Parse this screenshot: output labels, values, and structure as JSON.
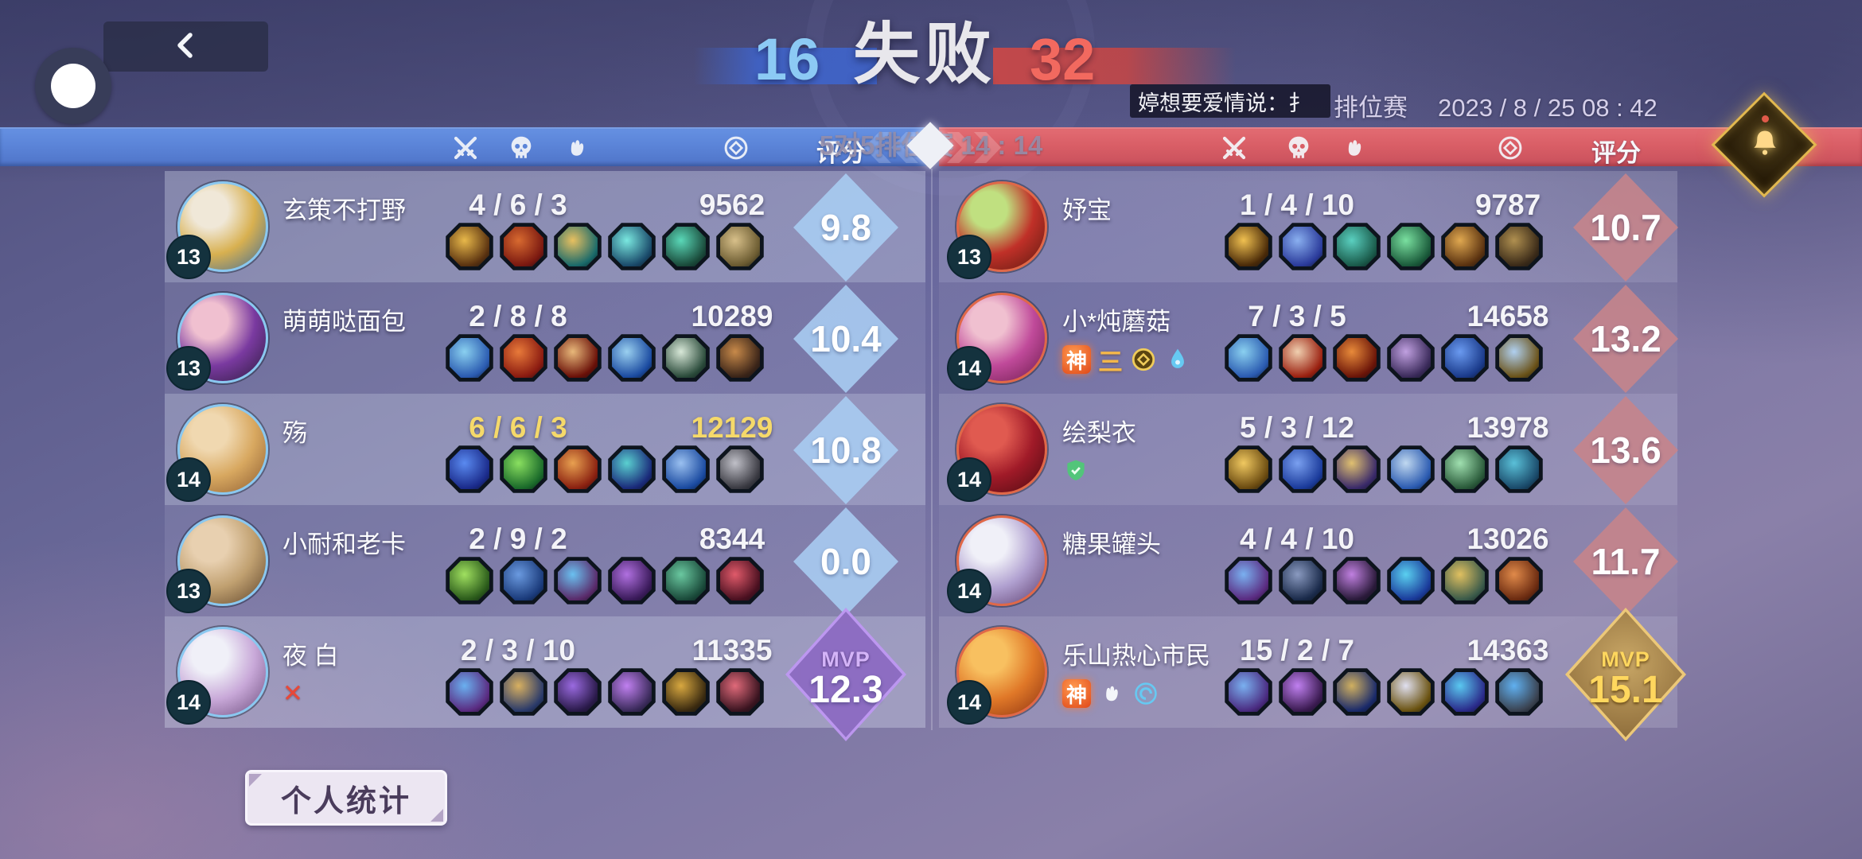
{
  "header": {
    "left_score": "16",
    "result": "失败",
    "right_score": "32",
    "subtitle": "5对5排位赛 14 : 14",
    "chat_message": "婷想要爱情说：扌",
    "mode_label": "排位赛",
    "datetime": "2023 / 8 / 25  08 : 42"
  },
  "columns": {
    "kills_icon": "crossed-swords",
    "deaths_icon": "skull",
    "assists_icon": "fist",
    "gold_icon": "coin",
    "score_label": "评分"
  },
  "mvp_label": "MVP",
  "footer": {
    "personal_stats_label": "个人统计"
  },
  "colors": {
    "team_left_bar": "#5b84d8",
    "team_right_bar": "#d95e66",
    "left_ring": "#8ac8f0",
    "right_ring": "#e06848",
    "score_left_diamond": "#a8cdf2",
    "score_right_diamond": "#c5848b",
    "mvp_left_diamond": "#9b6fd0",
    "mvp_right_diamond": "#e2b84e",
    "self_highlight": "#f5d96a"
  },
  "teams": {
    "left": {
      "players": [
        {
          "name": "玄策不打野",
          "level": "13",
          "kda": "4 / 6 / 3",
          "gold": "9562",
          "score": "9.8",
          "mvp": false,
          "self": false,
          "badges": [],
          "avatar": [
            "#f0e8d8",
            "#d8b050",
            "#3a6a9a"
          ],
          "items": [
            [
              "#e8b84a",
              "#5a3210"
            ],
            [
              "#d86a30",
              "#7a1810"
            ],
            [
              "#e8c060",
              "#1a6a6a"
            ],
            [
              "#7ae8e0",
              "#1a4a6a"
            ],
            [
              "#5ad8b8",
              "#1a4a3a"
            ],
            [
              "#d8c08a",
              "#6a5a30"
            ]
          ]
        },
        {
          "name": "萌萌哒面包",
          "level": "13",
          "kda": "2 / 8 / 8",
          "gold": "10289",
          "score": "10.4",
          "mvp": false,
          "self": false,
          "badges": [],
          "avatar": [
            "#f0c0d0",
            "#7a3aa0",
            "#2a1a3a"
          ],
          "items": [
            [
              "#8ad0f0",
              "#2a5ab0"
            ],
            [
              "#e87a3a",
              "#8a1a10"
            ],
            [
              "#e8b87a",
              "#6a1008"
            ],
            [
              "#9ad0f0",
              "#1a4aa0"
            ],
            [
              "#d8e8d8",
              "#2a4a3a"
            ],
            [
              "#c88a4a",
              "#3a2418"
            ]
          ]
        },
        {
          "name": "殇",
          "level": "14",
          "kda": "6 / 6 / 3",
          "gold": "12129",
          "score": "10.8",
          "mvp": false,
          "self": true,
          "badges": [],
          "avatar": [
            "#f0d8b0",
            "#d8a860",
            "#8a5a30"
          ],
          "items": [
            [
              "#5a8af0",
              "#1a2a8a"
            ],
            [
              "#8ae060",
              "#1a6a2a"
            ],
            [
              "#e8a050",
              "#8a2010"
            ],
            [
              "#5ad0d0",
              "#1a2a7a"
            ],
            [
              "#9ac0f0",
              "#1a4aa0"
            ],
            [
              "#c0c0c8",
              "#3a3a42"
            ]
          ]
        },
        {
          "name": "小耐和老卡",
          "level": "13",
          "kda": "2 / 9 / 2",
          "gold": "8344",
          "score": "0.0",
          "mvp": false,
          "self": false,
          "badges": [],
          "avatar": [
            "#e8d0b0",
            "#c0a070",
            "#5a4028"
          ],
          "items": [
            [
              "#a0e060",
              "#2a5a1a"
            ],
            [
              "#6a9ae0",
              "#1a3a7a"
            ],
            [
              "#6ac0f0",
              "#5a2a6a"
            ],
            [
              "#b070e0",
              "#3a1a5a"
            ],
            [
              "#6ac8a0",
              "#1a4a3a"
            ],
            [
              "#e05a6a",
              "#4a1020"
            ]
          ]
        },
        {
          "name": "夜 白",
          "level": "14",
          "kda": "2 / 3 / 10",
          "gold": "11335",
          "score": "12.3",
          "mvp": true,
          "self": false,
          "badges": [
            {
              "kind": "x",
              "text": "✕"
            }
          ],
          "avatar": [
            "#f0f0f8",
            "#c8a8d8",
            "#6a4a7a"
          ],
          "items": [
            [
              "#6ab0f0",
              "#5a2a80"
            ],
            [
              "#d8b060",
              "#2a3a6a"
            ],
            [
              "#9a6ae0",
              "#2a1a4a"
            ],
            [
              "#c080f0",
              "#3a2a5a"
            ],
            [
              "#d8a840",
              "#3a2a10"
            ],
            [
              "#e06a7a",
              "#3a1420"
            ]
          ]
        }
      ]
    },
    "right": {
      "players": [
        {
          "name": "妤宝",
          "level": "13",
          "kda": "1 / 4 / 10",
          "gold": "9787",
          "score": "10.7",
          "mvp": false,
          "self": false,
          "badges": [],
          "avatar": [
            "#c0e080",
            "#c03028",
            "#5a1a10"
          ],
          "items": [
            [
              "#f0c050",
              "#4a2a08"
            ],
            [
              "#8ab0f0",
              "#2a3a9a"
            ],
            [
              "#5ad0c0",
              "#1a5a4a"
            ],
            [
              "#7ae0a0",
              "#1a5a3a"
            ],
            [
              "#e0a850",
              "#5a3210"
            ],
            [
              "#b09050",
              "#3a2a18"
            ]
          ]
        },
        {
          "name": "小*炖蘑菇",
          "level": "14",
          "kda": "7 / 3 / 5",
          "gold": "14658",
          "score": "13.2",
          "mvp": false,
          "self": false,
          "badges": [
            {
              "kind": "god",
              "text": "神"
            },
            {
              "kind": "rank",
              "text": "三"
            },
            {
              "kind": "coin"
            },
            {
              "kind": "flame"
            }
          ],
          "avatar": [
            "#f0c0d0",
            "#c04a9a",
            "#6a1a4a"
          ],
          "items": [
            [
              "#8ad0f0",
              "#2a5ab0"
            ],
            [
              "#f0d0b0",
              "#9a2010"
            ],
            [
              "#e88a3a",
              "#6a1408"
            ],
            [
              "#c0a0e0",
              "#3a2a5a"
            ],
            [
              "#6a9af0",
              "#1a3a8a"
            ],
            [
              "#b0d0f0",
              "#6a5218"
            ]
          ]
        },
        {
          "name": "绘梨衣",
          "level": "14",
          "kda": "5 / 3 / 12",
          "gold": "13978",
          "score": "13.6",
          "mvp": false,
          "self": false,
          "badges": [
            {
              "kind": "shield"
            }
          ],
          "avatar": [
            "#e05a50",
            "#a01a28",
            "#4a0a10"
          ],
          "items": [
            [
              "#f0c860",
              "#6a4a10"
            ],
            [
              "#7aa0f0",
              "#1a3a9a"
            ],
            [
              "#e0c070",
              "#3a2a6a"
            ],
            [
              "#c0d8f0",
              "#2a5ab0"
            ],
            [
              "#a0e0b0",
              "#2a5a3a"
            ],
            [
              "#5ac0d8",
              "#1a4a6a"
            ]
          ]
        },
        {
          "name": "糖果罐头",
          "level": "14",
          "kda": "4 / 4 / 10",
          "gold": "13026",
          "score": "11.7",
          "mvp": false,
          "self": false,
          "badges": [],
          "avatar": [
            "#f0f0f8",
            "#b0a0d0",
            "#5a3a6a"
          ],
          "items": [
            [
              "#7ab0f0",
              "#5a2a80"
            ],
            [
              "#8a9ac0",
              "#1a2a4a"
            ],
            [
              "#c080e0",
              "#2a1a3a"
            ],
            [
              "#5ad0f0",
              "#1a3a9a"
            ],
            [
              "#e0c060",
              "#3a5a4a"
            ],
            [
              "#e08a4a",
              "#6a2a10"
            ]
          ]
        },
        {
          "name": "乐山热心市民",
          "level": "14",
          "kda": "15 / 2 / 7",
          "gold": "14363",
          "score": "15.1",
          "mvp": true,
          "self": false,
          "badges": [
            {
              "kind": "god",
              "text": "神"
            },
            {
              "kind": "fist"
            },
            {
              "kind": "swirl"
            }
          ],
          "avatar": [
            "#f8c060",
            "#e07828",
            "#8a3010"
          ],
          "items": [
            [
              "#7ab0f0",
              "#4a2a80"
            ],
            [
              "#c080f0",
              "#3a1a50"
            ],
            [
              "#d0b060",
              "#1a2a6a"
            ],
            [
              "#e0e0f0",
              "#6a5210"
            ],
            [
              "#5ac8f0",
              "#2a2a8a"
            ],
            [
              "#60b0f0",
              "#3a4250"
            ]
          ]
        }
      ]
    }
  }
}
